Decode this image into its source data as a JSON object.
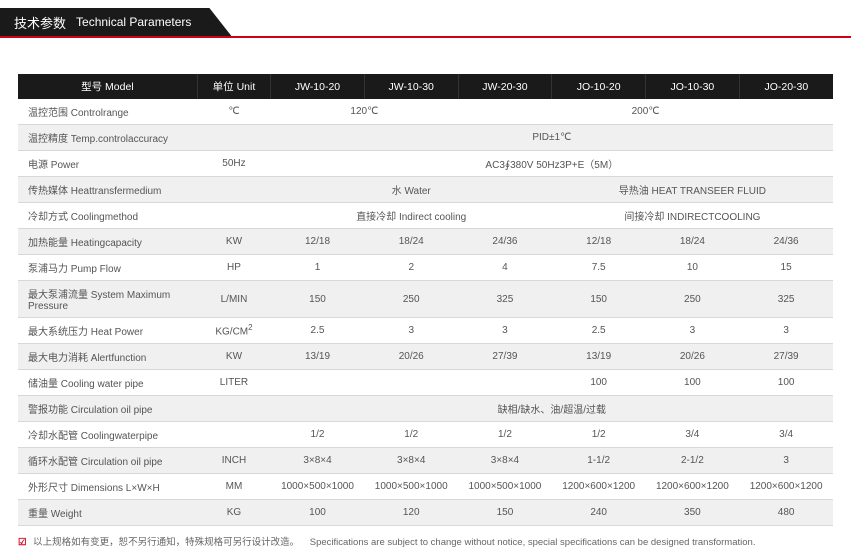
{
  "header": {
    "title_cn": "技术参数",
    "title_en": "Technical Parameters"
  },
  "columns": [
    "型号 Model",
    "单位 Unit",
    "JW-10-20",
    "JW-10-30",
    "JW-20-30",
    "JO-10-20",
    "JO-10-30",
    "JO-20-30"
  ],
  "col_widths": [
    "22%",
    "9%",
    "11.5%",
    "11.5%",
    "11.5%",
    "11.5%",
    "11.5%",
    "11.5%"
  ],
  "rows": [
    {
      "label": "温控范围 Controlrange",
      "unit": "℃",
      "cells": [
        {
          "v": "120℃",
          "span": 2
        },
        {
          "v": "200℃",
          "span": 4
        }
      ]
    },
    {
      "label": "温控精度 Temp.controlaccuracy",
      "unit": "",
      "cells": [
        {
          "v": "PID±1℃",
          "span": 6
        }
      ]
    },
    {
      "label": "电源 Power",
      "unit": "50Hz",
      "cells": [
        {
          "v": "AC3∮380V 50Hz3P+E（5M）",
          "span": 6
        }
      ]
    },
    {
      "label": "传热媒体 Heattransfermedium",
      "unit": "",
      "cells": [
        {
          "v": "水 Water",
          "span": 3
        },
        {
          "v": "导热油 HEAT TRANSEER FLUID",
          "span": 3
        }
      ]
    },
    {
      "label": "冷却方式 Coolingmethod",
      "unit": "",
      "cells": [
        {
          "v": "直接冷却 Indirect cooling",
          "span": 3
        },
        {
          "v": "间接冷却 INDIRECTCOOLING",
          "span": 3
        }
      ]
    },
    {
      "label": "加热能量 Heatingcapacity",
      "unit": "KW",
      "cells": [
        {
          "v": "12/18"
        },
        {
          "v": "18/24"
        },
        {
          "v": "24/36"
        },
        {
          "v": "12/18"
        },
        {
          "v": "18/24"
        },
        {
          "v": "24/36"
        }
      ]
    },
    {
      "label": "泵浦马力 Pump Flow",
      "unit": "HP",
      "cells": [
        {
          "v": "1"
        },
        {
          "v": "2"
        },
        {
          "v": "4"
        },
        {
          "v": "7.5"
        },
        {
          "v": "10"
        },
        {
          "v": "15"
        }
      ]
    },
    {
      "label": "最大泵浦流量 System Maximum Pressure",
      "unit": "L/MIN",
      "cells": [
        {
          "v": "150"
        },
        {
          "v": "250"
        },
        {
          "v": "325"
        },
        {
          "v": "150"
        },
        {
          "v": "250"
        },
        {
          "v": "325"
        }
      ]
    },
    {
      "label": "最大系统压力 Heat Power",
      "unit": "KG/CM²",
      "cells": [
        {
          "v": "2.5"
        },
        {
          "v": "3"
        },
        {
          "v": "3"
        },
        {
          "v": "2.5"
        },
        {
          "v": "3"
        },
        {
          "v": "3"
        }
      ]
    },
    {
      "label": "最大电力消耗 Alertfunction",
      "unit": "KW",
      "cells": [
        {
          "v": "13/19"
        },
        {
          "v": "20/26"
        },
        {
          "v": "27/39"
        },
        {
          "v": "13/19"
        },
        {
          "v": "20/26"
        },
        {
          "v": "27/39"
        }
      ]
    },
    {
      "label": "储油量 Cooling water pipe",
      "unit": "LITER",
      "cells": [
        {
          "v": ""
        },
        {
          "v": ""
        },
        {
          "v": ""
        },
        {
          "v": "100"
        },
        {
          "v": "100"
        },
        {
          "v": "100"
        }
      ]
    },
    {
      "label": "警报功能 Circulation oil pipe",
      "unit": "",
      "cells": [
        {
          "v": "缺相/缺水、油/超温/过载",
          "span": 6
        }
      ]
    },
    {
      "label": "冷却水配管 Coolingwaterpipe",
      "unit": "",
      "cells": [
        {
          "v": "1/2"
        },
        {
          "v": "1/2"
        },
        {
          "v": "1/2"
        },
        {
          "v": "1/2"
        },
        {
          "v": "3/4"
        },
        {
          "v": "3/4"
        }
      ]
    },
    {
      "label": "循环水配管 Circulation oil pipe",
      "unit": "INCH",
      "cells": [
        {
          "v": "3×8×4"
        },
        {
          "v": "3×8×4"
        },
        {
          "v": "3×8×4"
        },
        {
          "v": "1-1/2"
        },
        {
          "v": "2-1/2"
        },
        {
          "v": "3"
        }
      ]
    },
    {
      "label": "外形尺寸 Dimensions L×W×H",
      "unit": "MM",
      "cells": [
        {
          "v": "1000×500×1000"
        },
        {
          "v": "1000×500×1000"
        },
        {
          "v": "1000×500×1000"
        },
        {
          "v": "1200×600×1200"
        },
        {
          "v": "1200×600×1200"
        },
        {
          "v": "1200×600×1200"
        }
      ]
    },
    {
      "label": "重量 Weight",
      "unit": "KG",
      "cells": [
        {
          "v": "100"
        },
        {
          "v": "120"
        },
        {
          "v": "150"
        },
        {
          "v": "240"
        },
        {
          "v": "350"
        },
        {
          "v": "480"
        }
      ]
    }
  ],
  "footnote": {
    "check": "☑",
    "text_cn": "以上规格如有变更，恕不另行通知，特殊规格可另行设计改造。",
    "text_en": "Specifications are subject to change without notice, special specifications can be designed transformation."
  }
}
